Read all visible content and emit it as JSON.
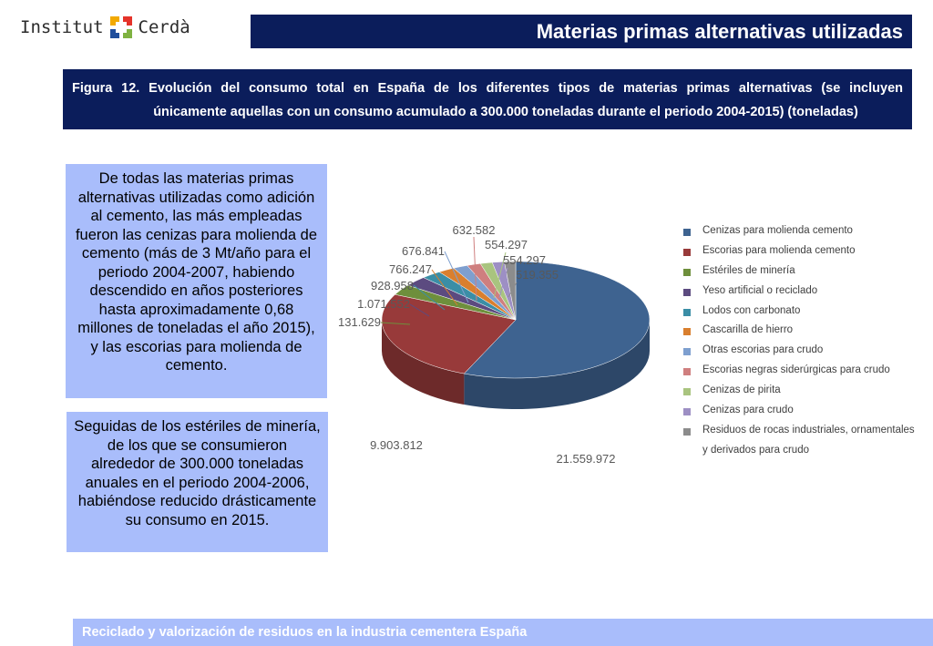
{
  "logo": {
    "left_text": "Institut",
    "right_text": "Cerdà"
  },
  "header": {
    "title": "Materias primas alternativas utilizadas"
  },
  "figure": {
    "line1": "Figura 12. Evolución del consumo total en España de los diferentes tipos de materias primas alternativas (se incluyen",
    "line2": "únicamente aquellas con un consumo acumulado a 300.000 toneladas durante el periodo 2004-2015) (toneladas)"
  },
  "text_boxes": {
    "box1": "De todas las materias primas alternativas utilizadas como adición al cemento, las más empleadas fueron las cenizas para molienda de cemento (más de 3 Mt/año para el periodo 2004-2007, habiendo descendido en años posteriores hasta aproximadamente 0,68 millones de toneladas el año 2015), y las escorias para molienda de cemento.",
    "box2": "Seguidas de los estériles de minería, de los que se consumieron alrededor de 300.000 toneladas anuales en el periodo 2004-2006, habiéndose reducido drásticamente su consumo en 2015."
  },
  "footer": {
    "text": "Reciclado y valorización de residuos en la industria cementera España"
  },
  "chart_data": {
    "type": "pie",
    "style": "3d",
    "categories": [
      "Cenizas para molienda cemento",
      "Escorias para molienda cemento",
      "Estériles de minería",
      "Yeso artificial o reciclado",
      "Lodos con carbonato",
      "Cascarilla de hierro",
      "Otras escorias para crudo",
      "Escorias negras siderúrgicas para crudo",
      "Cenizas de pirita",
      "Cenizas para crudo",
      "Residuos de rocas industriales, ornamentales y derivados para crudo"
    ],
    "legend_lines": [
      [
        "Cenizas para molienda cemento"
      ],
      [
        "Escorias para molienda cemento"
      ],
      [
        "Estériles de minería"
      ],
      [
        "Yeso artificial o reciclado"
      ],
      [
        "Lodos con carbonato"
      ],
      [
        "Cascarilla de hierro"
      ],
      [
        "Otras escorias para crudo"
      ],
      [
        "Escorias negras siderúrgicas para crudo"
      ],
      [
        "Cenizas de pirita"
      ],
      [
        "Cenizas para crudo"
      ],
      [
        "Residuos de rocas industriales, ornamentales",
        "y derivados para crudo"
      ]
    ],
    "values": [
      21559972,
      9903812,
      1131629,
      1071552,
      928958,
      766247,
      676841,
      632582,
      554297,
      554297,
      519355
    ],
    "labels": [
      "21.559.972",
      "9.903.812",
      "1.131.629",
      "1.071.552",
      "928.958",
      "766.247",
      "676.841",
      "632.582",
      "554.297",
      "554.297",
      "519.355"
    ],
    "colors": [
      "#3e6390",
      "#983a3a",
      "#6e8f3c",
      "#5c4b80",
      "#3b8ea6",
      "#d97f2e",
      "#7e9fcf",
      "#cf7f7f",
      "#a9c47f",
      "#9d8fc4",
      "#8c8c8c"
    ],
    "legend_position": "right"
  }
}
